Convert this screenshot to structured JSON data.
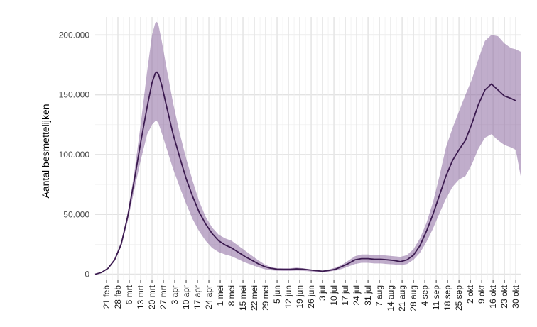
{
  "chart_data": {
    "type": "line",
    "title": "",
    "xlabel": "",
    "ylabel": "Aantal besmettelijken",
    "grid": true,
    "legend": "none",
    "ylim": [
      -5000,
      215000
    ],
    "y_ticks": [
      0,
      50000,
      100000,
      150000,
      200000
    ],
    "y_tick_labels": [
      "0",
      "50.000",
      "100.000",
      "150.000",
      "200.000"
    ],
    "x_range_days": [
      0,
      262
    ],
    "x_ticks": [
      {
        "day": 7,
        "label": "21 feb"
      },
      {
        "day": 14,
        "label": "28 feb"
      },
      {
        "day": 21,
        "label": "6 mrt"
      },
      {
        "day": 28,
        "label": "13 mrt"
      },
      {
        "day": 35,
        "label": "20 mrt"
      },
      {
        "day": 42,
        "label": "27 mrt"
      },
      {
        "day": 49,
        "label": "3 apr"
      },
      {
        "day": 56,
        "label": "10 apr"
      },
      {
        "day": 63,
        "label": "17 apr"
      },
      {
        "day": 70,
        "label": "24 apr"
      },
      {
        "day": 77,
        "label": "1 mei"
      },
      {
        "day": 84,
        "label": "8 mei"
      },
      {
        "day": 91,
        "label": "15 mei"
      },
      {
        "day": 98,
        "label": "22 mei"
      },
      {
        "day": 105,
        "label": "29 mei"
      },
      {
        "day": 112,
        "label": "5 jun"
      },
      {
        "day": 119,
        "label": "12 jun"
      },
      {
        "day": 126,
        "label": "19 jun"
      },
      {
        "day": 133,
        "label": "26 jun"
      },
      {
        "day": 140,
        "label": "3 jul"
      },
      {
        "day": 147,
        "label": "10 jul"
      },
      {
        "day": 154,
        "label": "17 jul"
      },
      {
        "day": 161,
        "label": "24 jul"
      },
      {
        "day": 168,
        "label": "31 jul"
      },
      {
        "day": 175,
        "label": "7 aug"
      },
      {
        "day": 182,
        "label": "14 aug"
      },
      {
        "day": 189,
        "label": "21 aug"
      },
      {
        "day": 196,
        "label": "28 aug"
      },
      {
        "day": 203,
        "label": "4 sep"
      },
      {
        "day": 210,
        "label": "11 sep"
      },
      {
        "day": 217,
        "label": "18 sep"
      },
      {
        "day": 224,
        "label": "25 sep"
      },
      {
        "day": 231,
        "label": "2 okt"
      },
      {
        "day": 238,
        "label": "9 okt"
      },
      {
        "day": 245,
        "label": "16 okt"
      },
      {
        "day": 252,
        "label": "23 okt"
      },
      {
        "day": 259,
        "label": "30 okt"
      }
    ],
    "series": [
      {
        "color": "#3b1a4f",
        "x": [
          0,
          4,
          8,
          12,
          16,
          20,
          24,
          28,
          32,
          35,
          37,
          38,
          39,
          41,
          44,
          48,
          52,
          56,
          60,
          64,
          68,
          72,
          76,
          80,
          84,
          88,
          92,
          96,
          100,
          104,
          108,
          112,
          116,
          120,
          124,
          128,
          132,
          136,
          140,
          144,
          148,
          152,
          156,
          160,
          164,
          168,
          172,
          176,
          180,
          184,
          188,
          192,
          196,
          200,
          204,
          208,
          212,
          216,
          220,
          224,
          228,
          232,
          236,
          240,
          244,
          248,
          252,
          256,
          259
        ],
        "values": [
          0,
          1500,
          5000,
          12000,
          25000,
          48000,
          78000,
          110000,
          140000,
          160000,
          168000,
          169000,
          167000,
          158000,
          140000,
          117000,
          98000,
          80000,
          65000,
          52000,
          42000,
          34000,
          28000,
          24500,
          22000,
          18500,
          15000,
          12000,
          9000,
          6500,
          5000,
          4200,
          4000,
          4000,
          4500,
          4200,
          3600,
          3000,
          2500,
          3200,
          4200,
          6500,
          9000,
          12000,
          13000,
          13000,
          12500,
          12500,
          12000,
          11500,
          10500,
          12000,
          16000,
          24000,
          36000,
          50000,
          66000,
          82000,
          95000,
          104000,
          112000,
          126000,
          142000,
          154000,
          159000,
          154000,
          149000,
          147000,
          145000
        ]
      }
    ],
    "band": {
      "color": "#8d6aa0",
      "x": [
        0,
        4,
        8,
        12,
        16,
        20,
        24,
        28,
        32,
        35,
        37,
        38,
        39,
        41,
        44,
        48,
        52,
        56,
        60,
        64,
        68,
        72,
        76,
        80,
        84,
        88,
        92,
        96,
        100,
        104,
        108,
        112,
        116,
        120,
        124,
        128,
        132,
        136,
        140,
        144,
        148,
        152,
        156,
        160,
        164,
        168,
        172,
        176,
        180,
        184,
        188,
        192,
        196,
        200,
        204,
        208,
        212,
        216,
        220,
        224,
        228,
        232,
        236,
        240,
        244,
        248,
        252,
        256,
        259,
        262
      ],
      "upper": [
        0,
        1600,
        5500,
        13000,
        27000,
        51000,
        84000,
        125000,
        170000,
        200000,
        210000,
        211000,
        208000,
        195000,
        172000,
        143000,
        118000,
        97000,
        78000,
        61000,
        48000,
        39000,
        33000,
        30000,
        28000,
        24000,
        20000,
        16000,
        12000,
        8500,
        6000,
        5000,
        5000,
        5000,
        5500,
        5000,
        4200,
        3500,
        3000,
        4000,
        5500,
        8000,
        11500,
        15000,
        16500,
        16500,
        16000,
        16000,
        15500,
        15000,
        14500,
        16000,
        21000,
        30000,
        43000,
        60000,
        82000,
        106000,
        122000,
        136000,
        150000,
        163000,
        180000,
        195000,
        200000,
        199000,
        193000,
        189000,
        188000,
        186000
      ],
      "lower": [
        0,
        1400,
        4500,
        11000,
        23000,
        44000,
        70000,
        95000,
        117000,
        125000,
        128000,
        128000,
        126000,
        118000,
        105000,
        88000,
        73000,
        59000,
        46000,
        36000,
        28000,
        22000,
        18500,
        16500,
        15000,
        12500,
        10000,
        8000,
        6000,
        4300,
        3300,
        2800,
        2700,
        2700,
        3000,
        2800,
        2400,
        2000,
        1700,
        2300,
        3000,
        4500,
        6500,
        8500,
        9500,
        9500,
        9000,
        9000,
        8500,
        8200,
        7500,
        8500,
        12000,
        18000,
        27000,
        38000,
        51000,
        63000,
        73000,
        79000,
        82000,
        92000,
        105000,
        114000,
        117000,
        112000,
        108000,
        106000,
        104000,
        82000
      ]
    }
  }
}
